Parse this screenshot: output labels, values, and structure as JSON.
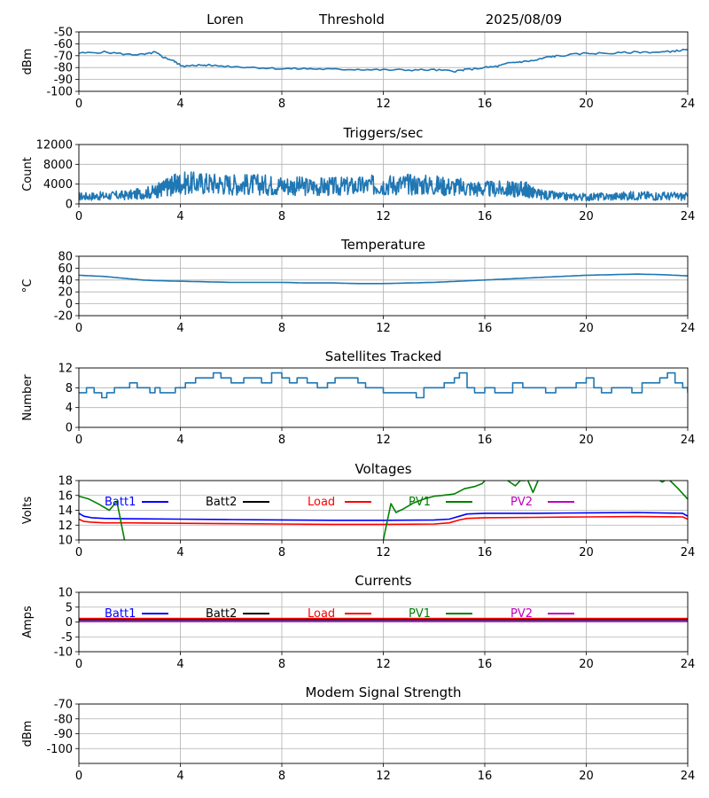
{
  "header": {
    "station": "Loren",
    "threshold": "Threshold",
    "date": "2025/08/09"
  },
  "colors": {
    "series": "#1f77b4",
    "grid": "#b0b0b0",
    "batt1": "#0000ff",
    "batt2": "#000000",
    "load": "#ff0000",
    "pv1": "#008000",
    "pv2": "#bf00bf"
  },
  "chart_data": [
    {
      "type": "line",
      "title": "",
      "xlabel": "",
      "ylabel": "dBm",
      "xlim": [
        0,
        24
      ],
      "ylim": [
        -100,
        -50
      ],
      "xticks": [
        "0",
        "4",
        "8",
        "12",
        "16",
        "20",
        "24"
      ],
      "yticks": [
        "-50",
        "-60",
        "-70",
        "-80",
        "-90",
        "-100"
      ],
      "grid": true,
      "series": [
        {
          "x": [
            0,
            1,
            2,
            2.6,
            3.0,
            3.3,
            3.7,
            4.0,
            4.3,
            4.6,
            5,
            6,
            7,
            8,
            9,
            10,
            11,
            12,
            13,
            14,
            14.8,
            15.2,
            16,
            16.5,
            17,
            17.5,
            18,
            18.5,
            19,
            20,
            21,
            22,
            23,
            23.5,
            24
          ],
          "values": [
            -68,
            -67,
            -69,
            -69,
            -67,
            -71,
            -74,
            -78,
            -79,
            -78,
            -78,
            -79,
            -80,
            -81,
            -81,
            -81.5,
            -81.5,
            -82,
            -82,
            -82,
            -83,
            -82,
            -80,
            -79,
            -76,
            -75,
            -74,
            -71,
            -70,
            -68,
            -68,
            -67,
            -67,
            -66,
            -65
          ]
        }
      ]
    },
    {
      "type": "line",
      "title": "Triggers/sec",
      "xlabel": "",
      "ylabel": "Count",
      "xlim": [
        0,
        24
      ],
      "ylim": [
        0,
        12000
      ],
      "xticks": [
        "0",
        "4",
        "8",
        "12",
        "16",
        "20",
        "24"
      ],
      "yticks": [
        "0",
        "4000",
        "8000",
        "12000"
      ],
      "grid": true,
      "series": [
        {
          "x": [
            0,
            1,
            2,
            3,
            3.5,
            4,
            5,
            6,
            7,
            8,
            9,
            10,
            11,
            12,
            13,
            14,
            15,
            16,
            17,
            17.6,
            18,
            19,
            20,
            21,
            22,
            23,
            24
          ],
          "values": [
            1500,
            1600,
            1800,
            2500,
            3500,
            4200,
            4200,
            4000,
            3900,
            3800,
            3500,
            3500,
            3600,
            3900,
            4000,
            3800,
            3400,
            3000,
            3000,
            3000,
            2000,
            1500,
            1400,
            1500,
            1700,
            1600,
            1500
          ]
        }
      ]
    },
    {
      "type": "line",
      "title": "Temperature",
      "xlabel": "",
      "ylabel": "°C",
      "xlim": [
        0,
        24
      ],
      "ylim": [
        -20,
        80
      ],
      "xticks": [
        "0",
        "4",
        "8",
        "12",
        "16",
        "20",
        "24"
      ],
      "yticks": [
        "-20",
        "0",
        "20",
        "40",
        "60",
        "80"
      ],
      "grid": true,
      "series": [
        {
          "x": [
            0,
            0.5,
            1,
            1.5,
            2,
            2.5,
            3,
            4,
            5,
            6,
            7,
            8,
            9,
            10,
            11,
            12,
            13,
            14,
            15,
            16,
            17,
            18,
            19,
            20,
            21,
            22,
            23,
            24
          ],
          "values": [
            48,
            47,
            46,
            44,
            42,
            40,
            39,
            38,
            37,
            36,
            36,
            36,
            35,
            35,
            34,
            34,
            35,
            36,
            38,
            40,
            42,
            44,
            46,
            48,
            49,
            50,
            49,
            47
          ]
        }
      ]
    },
    {
      "type": "line",
      "title": "Satellites Tracked",
      "xlabel": "",
      "ylabel": "Number",
      "xlim": [
        0,
        24
      ],
      "ylim": [
        0,
        12
      ],
      "xticks": [
        "0",
        "4",
        "8",
        "12",
        "16",
        "20",
        "24"
      ],
      "yticks": [
        "0",
        "4",
        "8",
        "12"
      ],
      "grid": true,
      "series": [
        {
          "x": [
            0,
            0.3,
            0.6,
            0.9,
            1.1,
            1.4,
            2.0,
            2.3,
            2.8,
            3.0,
            3.2,
            3.5,
            3.8,
            4.2,
            4.6,
            5.0,
            5.3,
            5.6,
            6.0,
            6.5,
            7.0,
            7.2,
            7.6,
            8.0,
            8.3,
            8.6,
            9.0,
            9.4,
            9.8,
            10.1,
            10.5,
            11.0,
            11.3,
            11.7,
            12.0,
            12.4,
            12.8,
            13.3,
            13.6,
            14.0,
            14.4,
            14.8,
            15.0,
            15.3,
            15.6,
            16.0,
            16.4,
            16.8,
            17.1,
            17.5,
            18.0,
            18.4,
            18.8,
            19.2,
            19.6,
            20.0,
            20.3,
            20.6,
            21.0,
            21.4,
            21.8,
            22.2,
            22.6,
            22.9,
            23.2,
            23.5,
            23.8,
            24.0
          ],
          "values": [
            7,
            8,
            7,
            6,
            7,
            8,
            9,
            8,
            7,
            8,
            7,
            7,
            8,
            9,
            10,
            10,
            11,
            10,
            9,
            10,
            10,
            9,
            11,
            10,
            9,
            10,
            9,
            8,
            9,
            10,
            10,
            9,
            8,
            8,
            7,
            7,
            7,
            6,
            8,
            8,
            9,
            10,
            11,
            8,
            7,
            8,
            7,
            7,
            9,
            8,
            8,
            7,
            8,
            8,
            9,
            10,
            8,
            7,
            8,
            8,
            7,
            9,
            9,
            10,
            11,
            9,
            8,
            7
          ]
        }
      ]
    },
    {
      "type": "line",
      "title": "Voltages",
      "xlabel": "",
      "ylabel": "Volts",
      "xlim": [
        0,
        24
      ],
      "ylim": [
        10,
        18
      ],
      "xticks": [
        "0",
        "4",
        "8",
        "12",
        "16",
        "20",
        "24"
      ],
      "yticks": [
        "10",
        "12",
        "14",
        "16",
        "18"
      ],
      "grid": true,
      "legend": [
        "Batt1",
        "Batt2",
        "Load",
        "PV1",
        "PV2"
      ],
      "series": [
        {
          "name": "Batt1",
          "x": [
            0,
            0.2,
            0.5,
            1,
            2,
            4,
            6,
            8,
            10,
            12,
            14,
            14.6,
            15,
            15.3,
            16,
            18,
            20,
            22,
            23.8,
            24
          ],
          "values": [
            13.6,
            13.2,
            13.0,
            12.9,
            12.85,
            12.8,
            12.75,
            12.7,
            12.65,
            12.65,
            12.7,
            12.8,
            13.2,
            13.5,
            13.6,
            13.6,
            13.65,
            13.7,
            13.6,
            13.2
          ]
        },
        {
          "name": "Load",
          "x": [
            0,
            0.2,
            0.5,
            1,
            2,
            4,
            6,
            8,
            10,
            12,
            14,
            14.6,
            15,
            15.3,
            16,
            18,
            20,
            22,
            23.8,
            24
          ],
          "values": [
            12.8,
            12.5,
            12.4,
            12.3,
            12.3,
            12.25,
            12.2,
            12.15,
            12.1,
            12.1,
            12.15,
            12.3,
            12.7,
            12.9,
            13.0,
            13.05,
            13.1,
            13.15,
            13.1,
            12.8
          ]
        },
        {
          "name": "PV1",
          "x": [
            0,
            0.4,
            0.8,
            1.2,
            1.5,
            1.8
          ],
          "values": [
            15.9,
            15.5,
            14.8,
            14.0,
            15.2,
            10.0
          ]
        },
        {
          "name": "PV1",
          "x": [
            12.0,
            12.3,
            12.5,
            12.8,
            13.2,
            13.6,
            14.0,
            14.3,
            14.8,
            15.2,
            15.6,
            15.9,
            16.0
          ],
          "values": [
            10.0,
            14.9,
            13.7,
            14.2,
            15.0,
            15.5,
            15.9,
            16.0,
            16.2,
            16.9,
            17.2,
            17.6,
            18.0
          ]
        },
        {
          "name": "PV1",
          "x": [
            16.9,
            17.2,
            17.4,
            17.6
          ],
          "values": [
            18.0,
            17.3,
            18.0,
            18.0
          ]
        },
        {
          "name": "PV1",
          "x": [
            17.7,
            17.9,
            18.1
          ],
          "values": [
            18.0,
            16.4,
            18.0
          ]
        },
        {
          "name": "PV1",
          "x": [
            22.9,
            23.0,
            23.1
          ],
          "values": [
            18.0,
            17.8,
            18.0
          ]
        },
        {
          "name": "PV1",
          "x": [
            23.3,
            23.6,
            24.0
          ],
          "values": [
            18.0,
            17.0,
            15.5
          ]
        }
      ]
    },
    {
      "type": "line",
      "title": "Currents",
      "xlabel": "",
      "ylabel": "Amps",
      "xlim": [
        0,
        24
      ],
      "ylim": [
        -10,
        10
      ],
      "xticks": [
        "0",
        "4",
        "8",
        "12",
        "16",
        "20",
        "24"
      ],
      "yticks": [
        "-10",
        "-5",
        "0",
        "5",
        "10"
      ],
      "grid": true,
      "legend": [
        "Batt1",
        "Batt2",
        "Load",
        "PV1",
        "PV2"
      ],
      "series": [
        {
          "name": "Batt1",
          "x": [
            0,
            24
          ],
          "values": [
            0.3,
            0.3
          ]
        },
        {
          "name": "PV2",
          "x": [
            0,
            24
          ],
          "values": [
            0.2,
            0.2
          ]
        },
        {
          "name": "Batt2",
          "x": [
            0,
            24
          ],
          "values": [
            0.8,
            0.8
          ]
        },
        {
          "name": "Load",
          "x": [
            0,
            24
          ],
          "values": [
            1.2,
            1.2
          ]
        }
      ]
    },
    {
      "type": "line",
      "title": "Modem Signal Strength",
      "xlabel": "",
      "ylabel": "dBm",
      "xlim": [
        0,
        24
      ],
      "ylim": [
        -110,
        -70
      ],
      "xticks": [
        "0",
        "4",
        "8",
        "12",
        "16",
        "20",
        "24"
      ],
      "yticks": [
        "-70",
        "-80",
        "-90",
        "-100"
      ],
      "grid": true,
      "series": []
    }
  ]
}
